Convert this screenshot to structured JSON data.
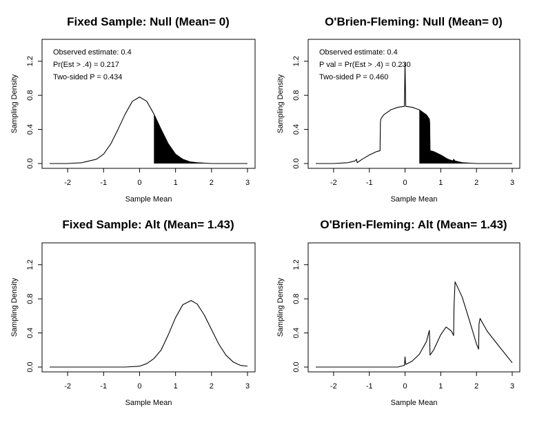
{
  "chart_data": [
    {
      "type": "line",
      "title": "Fixed Sample: Null (Mean= 0)",
      "xlabel": "Sample Mean",
      "ylabel": "Sampling Density",
      "xlim": [
        -2.5,
        3
      ],
      "ylim": [
        0,
        1.4
      ],
      "xticks": [
        -2,
        -1,
        0,
        1,
        2,
        3
      ],
      "yticks": [
        0.0,
        0.4,
        0.8,
        1.2
      ],
      "ytick_labels": [
        "0.0",
        "0.4",
        "0.8",
        "1.2"
      ],
      "annotations": [
        "Observed estimate: 0.4",
        "Pr(Est > .4) = 0.217",
        "Two-sided P = 0.434"
      ],
      "shaded_from": 0.4,
      "x": [
        -2.5,
        -2,
        -1.6,
        -1.2,
        -1,
        -0.8,
        -0.6,
        -0.4,
        -0.2,
        0,
        0.2,
        0.4,
        0.6,
        0.8,
        1,
        1.2,
        1.4,
        1.6,
        2,
        2.5,
        3
      ],
      "y": [
        0,
        0,
        0.01,
        0.05,
        0.11,
        0.23,
        0.4,
        0.58,
        0.73,
        0.78,
        0.73,
        0.58,
        0.4,
        0.23,
        0.11,
        0.05,
        0.02,
        0.01,
        0,
        0,
        0
      ]
    },
    {
      "type": "line",
      "title": "O'Brien-Fleming: Null (Mean= 0)",
      "xlabel": "Sample Mean",
      "ylabel": "Sampling Density",
      "xlim": [
        -2.5,
        3
      ],
      "ylim": [
        0,
        1.4
      ],
      "xticks": [
        -2,
        -1,
        0,
        1,
        2,
        3
      ],
      "yticks": [
        0.0,
        0.4,
        0.8,
        1.2
      ],
      "ytick_labels": [
        "0.0",
        "0.4",
        "0.8",
        "1.2"
      ],
      "annotations": [
        "Observed estimate: 0.4",
        "P val = Pr(Est > .4) = 0.230",
        "Two-sided P = 0.460"
      ],
      "shaded_from": 0.4,
      "x": [
        -2.5,
        -2,
        -1.6,
        -1.4,
        -1.36,
        -1.34,
        -1.2,
        -1.0,
        -0.8,
        -0.7,
        -0.69,
        -0.68,
        -0.6,
        -0.4,
        -0.2,
        -0.02,
        -0.01,
        0,
        0.01,
        0.02,
        0.2,
        0.4,
        0.6,
        0.68,
        0.69,
        0.7,
        0.8,
        1.0,
        1.2,
        1.34,
        1.36,
        1.4,
        1.6,
        2.0,
        2.5,
        3
      ],
      "y": [
        0,
        0,
        0.01,
        0.03,
        0.05,
        0.01,
        0.05,
        0.1,
        0.14,
        0.15,
        0.48,
        0.52,
        0.57,
        0.63,
        0.66,
        0.67,
        0.9,
        1.18,
        0.9,
        0.67,
        0.66,
        0.63,
        0.57,
        0.52,
        0.48,
        0.15,
        0.14,
        0.1,
        0.05,
        0.03,
        0.05,
        0.03,
        0.01,
        0,
        0,
        0
      ]
    },
    {
      "type": "line",
      "title": "Fixed Sample: Alt (Mean= 1.43)",
      "xlabel": "Sample Mean",
      "ylabel": "Sampling Density",
      "xlim": [
        -2.5,
        3
      ],
      "ylim": [
        0,
        1.4
      ],
      "xticks": [
        -2,
        -1,
        0,
        1,
        2,
        3
      ],
      "yticks": [
        0.0,
        0.4,
        0.8,
        1.2
      ],
      "ytick_labels": [
        "0.0",
        "0.4",
        "0.8",
        "1.2"
      ],
      "x": [
        -2.5,
        -1,
        -0.4,
        0,
        0.2,
        0.4,
        0.6,
        0.8,
        1.0,
        1.2,
        1.43,
        1.6,
        1.8,
        2.0,
        2.2,
        2.4,
        2.6,
        2.8,
        3
      ],
      "y": [
        0,
        0,
        0,
        0.01,
        0.04,
        0.1,
        0.2,
        0.38,
        0.58,
        0.73,
        0.78,
        0.74,
        0.61,
        0.44,
        0.27,
        0.14,
        0.06,
        0.02,
        0.01
      ]
    },
    {
      "type": "line",
      "title": "O'Brien-Fleming: Alt (Mean= 1.43)",
      "xlabel": "Sample Mean",
      "ylabel": "Sampling Density",
      "xlim": [
        -2.5,
        3
      ],
      "ylim": [
        0,
        1.4
      ],
      "xticks": [
        -2,
        -1,
        0,
        1,
        2,
        3
      ],
      "yticks": [
        0.0,
        0.4,
        0.8,
        1.2
      ],
      "ytick_labels": [
        "0.0",
        "0.4",
        "0.8",
        "1.2"
      ],
      "x": [
        -2.5,
        -1,
        -0.2,
        -0.02,
        -0.01,
        0,
        0.01,
        0.02,
        0.2,
        0.4,
        0.6,
        0.68,
        0.69,
        0.7,
        0.8,
        1.0,
        1.15,
        1.3,
        1.36,
        1.37,
        1.4,
        1.6,
        1.8,
        2.0,
        2.06,
        2.07,
        2.1,
        2.3,
        2.6,
        3
      ],
      "y": [
        0,
        0,
        0,
        0.02,
        0.06,
        0.12,
        0.06,
        0.03,
        0.07,
        0.15,
        0.3,
        0.43,
        0.32,
        0.14,
        0.2,
        0.38,
        0.47,
        0.42,
        0.37,
        0.7,
        1.0,
        0.82,
        0.55,
        0.27,
        0.21,
        0.5,
        0.57,
        0.42,
        0.26,
        0.05
      ]
    }
  ]
}
